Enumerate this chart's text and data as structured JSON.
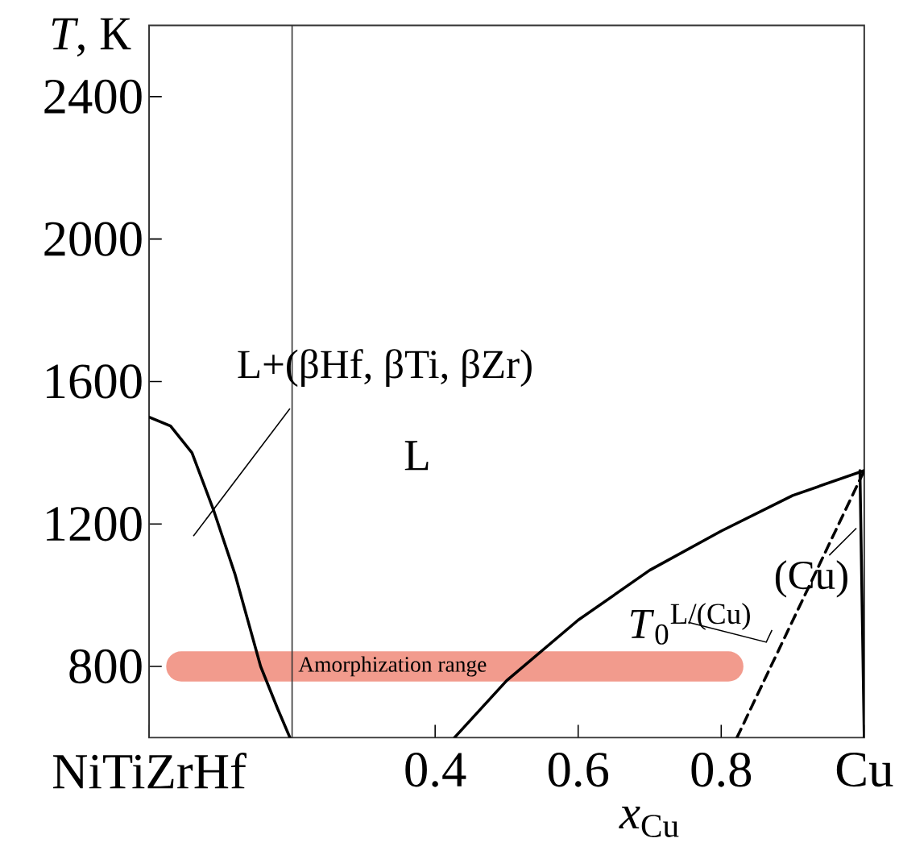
{
  "chart_data": {
    "type": "line",
    "xlabel": "*x*$_{Cu}$",
    "ylabel": "*T*, К",
    "xlim": [
      0,
      1
    ],
    "ylim": [
      600,
      2600
    ],
    "xticks": [
      {
        "value": 0,
        "label": "NiTiZrHf"
      },
      0.4,
      0.6,
      0.8,
      {
        "value": 1,
        "label": "Cu"
      }
    ],
    "yticks": [
      800,
      1200,
      1600,
      2000,
      2400
    ],
    "series": [
      {
        "color": "#f29b8d",
        "x": [
          0.045,
          0.81
        ],
        "values": [
          800,
          800
        ]
      },
      {
        "color": "#000000",
        "line_style": "solid",
        "x": [
          0,
          0.03,
          0.06,
          0.09,
          0.12,
          0.156,
          0.18,
          0.197
        ],
        "values": [
          1500,
          1475,
          1400,
          1240,
          1060,
          800,
          680,
          600
        ]
      },
      {
        "color": "#000000",
        "line_style": "solid",
        "x": [
          0.427,
          0.5,
          0.6,
          0.7,
          0.8,
          0.9,
          1
        ],
        "values": [
          600,
          760,
          930,
          1070,
          1180,
          1280,
          1350
        ]
      },
      {
        "color": "#000000",
        "line_style": "dashed",
        "x": [
          0.822,
          1
        ],
        "values": [
          600,
          1350
        ]
      },
      {
        "color": "#000000",
        "line_style": "solid",
        "x": [
          0.994,
          1
        ],
        "values": [
          1350,
          600
        ]
      }
    ],
    "ref_lines": [
      {
        "axis": "x",
        "value": 0.2,
        "color": "#333333"
      }
    ],
    "annotations": [
      "L+(βHf, βTi, βZr)",
      "L",
      "Amorphization range",
      "*T*$_{0}$$^{L/(Cu)}$",
      "(Cu)"
    ]
  }
}
